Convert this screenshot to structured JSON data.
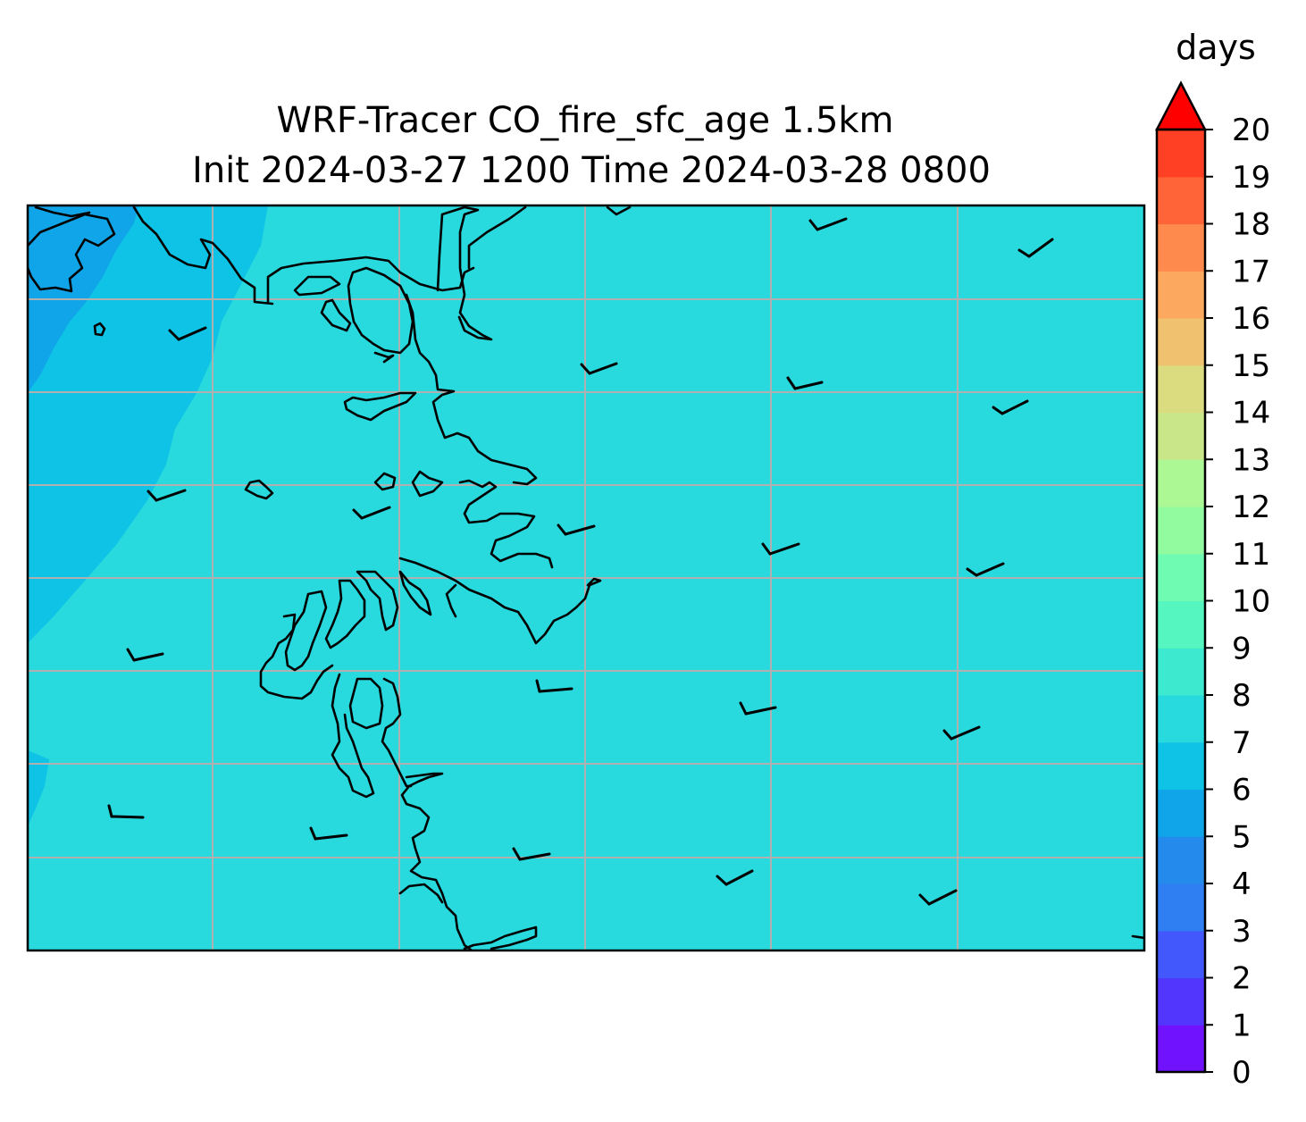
{
  "title": {
    "line1": "WRF-Tracer CO_fire_sfc_age 1.5km",
    "line2": "Init 2024-03-27 1200 Time 2024-03-28 0800"
  },
  "colorbar": {
    "unit_label": "days",
    "extend": "max",
    "ticks": [
      "0",
      "1",
      "2",
      "3",
      "4",
      "5",
      "6",
      "7",
      "8",
      "9",
      "10",
      "11",
      "12",
      "13",
      "14",
      "15",
      "16",
      "17",
      "18",
      "19",
      "20"
    ],
    "level_colors": [
      "#7112ff",
      "#5336fe",
      "#4258fc",
      "#2f7ff3",
      "#248aec",
      "#10a5e8",
      "#0fc3e6",
      "#28d9de",
      "#3de9cf",
      "#56f6c0",
      "#6ffcb2",
      "#92fba0",
      "#acf894",
      "#c9e789",
      "#dbdc80",
      "#f0c270",
      "#fca95f",
      "#fe8a4d",
      "#ff6338",
      "#ff4024",
      "#ff1a0d"
    ],
    "extend_color": "#ff0000"
  },
  "map": {
    "field_colors": {
      "days_4_to_5": "#10a5e8",
      "days_5_to_6": "#0fc3e6",
      "days_6_to_7": "#28d9de"
    },
    "gridline_color": "#b0b0b0",
    "coastline_color": "#000000"
  },
  "chart_data": {
    "type": "map",
    "variable": "CO_fire_sfc_age",
    "units": "days",
    "levels": [
      0,
      1,
      2,
      3,
      4,
      5,
      6,
      7,
      8,
      9,
      10,
      11,
      12,
      13,
      14,
      15,
      16,
      17,
      18,
      19,
      20
    ],
    "colorbar_extend": "max",
    "field_ranges_visible": [
      "4-5 (northwest corner)",
      "5-6 (western edge)",
      "6-7 (most of domain)"
    ],
    "grid": true,
    "overlays": [
      "coastlines",
      "wind barbs"
    ]
  }
}
